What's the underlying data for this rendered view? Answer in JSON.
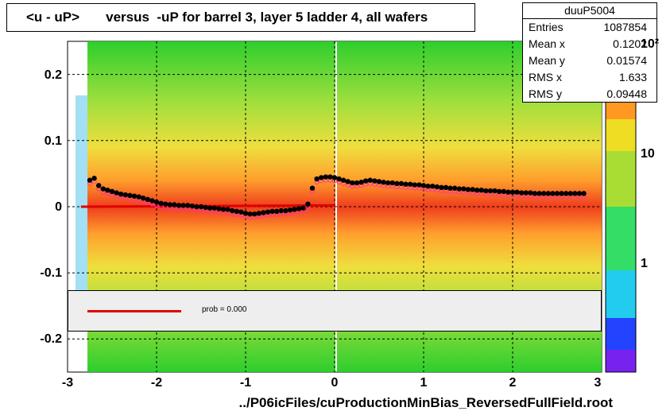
{
  "title": "<u - uP>       versus  -uP for barrel 3, layer 5 ladder 4, all wafers",
  "stats": {
    "name": "duuP5004",
    "rows": [
      {
        "label": "Entries",
        "value": "1087854"
      },
      {
        "label": "Mean x",
        "value": "0.1202"
      },
      {
        "label": "Mean y",
        "value": "0.01574"
      },
      {
        "label": "RMS x",
        "value": "1.633"
      },
      {
        "label": "RMS y",
        "value": "0.09448"
      }
    ]
  },
  "xlabel": "../P06icFiles/cuProductionMinBias_ReversedFullField.root",
  "legend": {
    "fit_label": "prob = 0.000"
  },
  "colors": {
    "profile_points": "#000000",
    "open_markers": "#ff3399",
    "fit_line": "#e00000"
  },
  "chart_data": {
    "type": "heatmap",
    "title": "<u - uP>       versus  -uP for barrel 3, layer 5 ladder 4, all wafers",
    "xlabel": "../P06icFiles/cuProductionMinBias_ReversedFullField.root",
    "ylabel": "",
    "xlim": [
      -3,
      3
    ],
    "ylim": [
      -0.25,
      0.25
    ],
    "x_ticks": [
      "-3",
      "-2",
      "-1",
      "0",
      "1",
      "2",
      "3"
    ],
    "y_ticks": [
      "-0.2",
      "-0.1",
      "0",
      "0.1",
      "0.2"
    ],
    "z_scale": "log",
    "z_ticks": [
      "1",
      "10",
      "10²"
    ],
    "grid": true,
    "series": [
      {
        "type": "profile",
        "x": [
          -2.75,
          -2.7,
          -2.65,
          -2.6,
          -2.55,
          -2.5,
          -2.45,
          -2.4,
          -2.35,
          -2.3,
          -2.25,
          -2.2,
          -2.15,
          -2.1,
          -2.05,
          -2.0,
          -1.95,
          -1.9,
          -1.85,
          -1.8,
          -1.75,
          -1.7,
          -1.65,
          -1.6,
          -1.55,
          -1.5,
          -1.45,
          -1.4,
          -1.35,
          -1.3,
          -1.25,
          -1.2,
          -1.15,
          -1.1,
          -1.05,
          -1.0,
          -0.95,
          -0.9,
          -0.85,
          -0.8,
          -0.75,
          -0.7,
          -0.65,
          -0.6,
          -0.55,
          -0.5,
          -0.45,
          -0.4,
          -0.35,
          -0.3,
          -0.25,
          -0.2,
          -0.15,
          -0.1,
          -0.05,
          0.0,
          0.05,
          0.1,
          0.15,
          0.2,
          0.25,
          0.3,
          0.35,
          0.4,
          0.45,
          0.5,
          0.55,
          0.6,
          0.65,
          0.7,
          0.75,
          0.8,
          0.85,
          0.9,
          0.95,
          1.0,
          1.05,
          1.1,
          1.15,
          1.2,
          1.25,
          1.3,
          1.35,
          1.4,
          1.45,
          1.5,
          1.55,
          1.6,
          1.65,
          1.7,
          1.75,
          1.8,
          1.85,
          1.9,
          1.95,
          2.0,
          2.05,
          2.1,
          2.15,
          2.2,
          2.25,
          2.3,
          2.35,
          2.4,
          2.45,
          2.5,
          2.55,
          2.6,
          2.65,
          2.7,
          2.75,
          2.8
        ],
        "y": [
          0.04,
          0.043,
          0.032,
          0.027,
          0.025,
          0.023,
          0.021,
          0.019,
          0.018,
          0.017,
          0.016,
          0.015,
          0.013,
          0.011,
          0.009,
          0.007,
          0.005,
          0.004,
          0.003,
          0.003,
          0.002,
          0.002,
          0.002,
          0.001,
          0.0,
          0.0,
          -0.001,
          -0.002,
          -0.002,
          -0.003,
          -0.004,
          -0.004,
          -0.006,
          -0.007,
          -0.008,
          -0.01,
          -0.011,
          -0.011,
          -0.01,
          -0.009,
          -0.008,
          -0.007,
          -0.007,
          -0.006,
          -0.006,
          -0.005,
          -0.004,
          -0.003,
          -0.002,
          0.004,
          0.028,
          0.042,
          0.044,
          0.045,
          0.045,
          0.044,
          0.042,
          0.04,
          0.038,
          0.036,
          0.036,
          0.037,
          0.039,
          0.04,
          0.039,
          0.038,
          0.037,
          0.036,
          0.036,
          0.035,
          0.035,
          0.034,
          0.034,
          0.033,
          0.033,
          0.032,
          0.031,
          0.031,
          0.03,
          0.029,
          0.029,
          0.028,
          0.028,
          0.027,
          0.027,
          0.026,
          0.026,
          0.025,
          0.025,
          0.024,
          0.024,
          0.024,
          0.023,
          0.023,
          0.022,
          0.022,
          0.022,
          0.021,
          0.021,
          0.021,
          0.02,
          0.02,
          0.02,
          0.02,
          0.02,
          0.02,
          0.02,
          0.02,
          0.02,
          0.02,
          0.02,
          0.02
        ]
      },
      {
        "type": "fit",
        "x": [
          -2.85,
          0.0
        ],
        "y": [
          0.0,
          0.002
        ]
      }
    ]
  }
}
